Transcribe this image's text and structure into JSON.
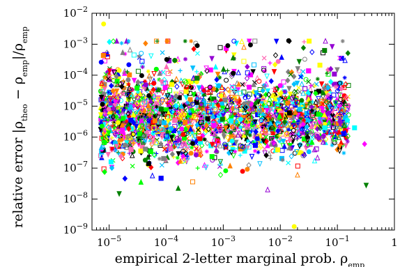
{
  "chart_data": {
    "type": "scatter",
    "title": "",
    "xlabel": "empirical 2-letter marginal prob. ρ",
    "xlabel_sub": "emp",
    "ylabel_prefix": "relative error |ρ",
    "ylabel_sub1": "theo",
    "ylabel_mid": " − ρ",
    "ylabel_sub2": "emp",
    "ylabel_mid2": "|/ρ",
    "ylabel_sub3": "emp",
    "x_scale": "log",
    "y_scale": "log",
    "xlim": [
      5e-06,
      1
    ],
    "ylim": [
      1e-09,
      0.01
    ],
    "x_ticks": [
      {
        "base": "10",
        "exp": "−5",
        "value": 1e-05
      },
      {
        "base": "10",
        "exp": "−4",
        "value": 0.0001
      },
      {
        "base": "10",
        "exp": "−3",
        "value": 0.001
      },
      {
        "base": "10",
        "exp": "−2",
        "value": 0.01
      },
      {
        "base": "10",
        "exp": "−1",
        "value": 0.1
      },
      {
        "base": "1",
        "exp": "",
        "value": 1
      }
    ],
    "y_ticks": [
      {
        "base": "10",
        "exp": "−9",
        "value": 1e-09
      },
      {
        "base": "10",
        "exp": "−8",
        "value": 1e-08
      },
      {
        "base": "10",
        "exp": "−7",
        "value": 1e-07
      },
      {
        "base": "10",
        "exp": "−6",
        "value": 1e-06
      },
      {
        "base": "10",
        "exp": "−5",
        "value": 1e-05
      },
      {
        "base": "10",
        "exp": "−4",
        "value": 0.0001
      },
      {
        "base": "10",
        "exp": "−3",
        "value": 0.001
      },
      {
        "base": "10",
        "exp": "−2",
        "value": 0.01
      }
    ],
    "grid": false,
    "legend": "none",
    "colors": [
      "#000000",
      "#ff00ff",
      "#00c0ff",
      "#ffff00",
      "#00ff00",
      "#ff0000",
      "#0000ff",
      "#ff8000",
      "#00ffff",
      "#808080",
      "#ff69b4",
      "#9400d3",
      "#008000"
    ],
    "markers": [
      "circle",
      "diamond",
      "square",
      "triangle",
      "triangle-down",
      "cross",
      "plus",
      "star",
      "circle-open",
      "diamond-open",
      "square-open",
      "triangle-open",
      "triangle-down-open"
    ],
    "generator": {
      "n_points": 2600,
      "logx_range": [
        -5.15,
        -0.8
      ],
      "logy_center": -5.4,
      "logy_spread": 0.75,
      "seed": 7
    },
    "highlight_points": [
      {
        "x": 8e-06,
        "y": 0.0045,
        "color": "#ffff00",
        "marker": "circle"
      },
      {
        "x": 0.0012,
        "y": 0.0009,
        "color": "#000000",
        "marker": "circle"
      },
      {
        "x": 0.00035,
        "y": 0.0009,
        "color": "#000000",
        "marker": "circle"
      },
      {
        "x": 0.0023,
        "y": 0.0008,
        "color": "#ff8000",
        "marker": "triangle-open"
      },
      {
        "x": 0.003,
        "y": 0.00095,
        "color": "#000000",
        "marker": "circle"
      },
      {
        "x": 0.014,
        "y": 0.0013,
        "color": "#000000",
        "marker": "circle"
      },
      {
        "x": 0.3,
        "y": 6e-07,
        "color": "#ff00ff",
        "marker": "diamond"
      },
      {
        "x": 0.32,
        "y": 2.8e-08,
        "color": "#008000",
        "marker": "triangle-down"
      },
      {
        "x": 0.0175,
        "y": 1.3e-09,
        "color": "#ffff00",
        "marker": "circle"
      },
      {
        "x": 0.06,
        "y": 2e-06,
        "color": "#00ffff",
        "marker": "square"
      },
      {
        "x": 0.11,
        "y": 5e-07,
        "color": "#ff8000",
        "marker": "triangle-down"
      },
      {
        "x": 0.2,
        "y": 2e-06,
        "color": "#00ffff",
        "marker": "square"
      },
      {
        "x": 0.02,
        "y": 6e-08,
        "color": "#ff8000",
        "marker": "triangle-open"
      },
      {
        "x": 0.006,
        "y": 2e-08,
        "color": "#9400d3",
        "marker": "triangle-open"
      },
      {
        "x": 1.5e-05,
        "y": 1.5e-08,
        "color": "#008000",
        "marker": "triangle-down"
      }
    ]
  }
}
